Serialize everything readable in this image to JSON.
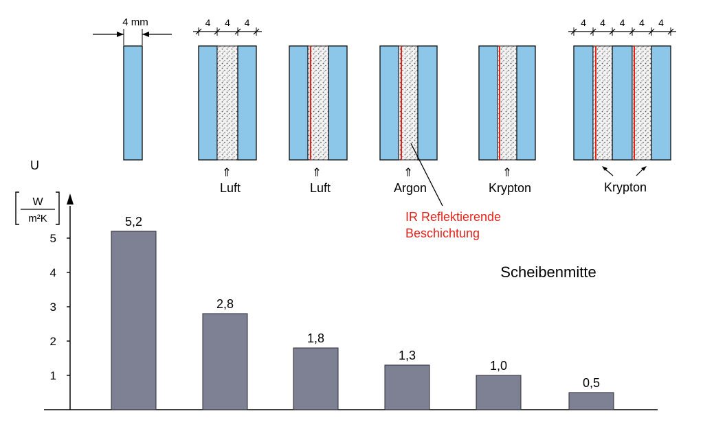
{
  "colors": {
    "glass": "#8cc6e8",
    "glass_edge": "#1a1a1a",
    "gas_fill": "#f2f2f2",
    "gas_dots": "#555555",
    "coating": "#e0241b",
    "bar": "#7e8193",
    "axis": "#000000",
    "callout_text": "#e0241b"
  },
  "diagram": {
    "single_pane_dimension": "4 mm",
    "pane_spacing_labels": [
      "4",
      "4",
      "4"
    ],
    "triple_spacing_labels": [
      "4",
      "4",
      "4",
      "4",
      "4"
    ],
    "gas_labels": [
      "Luft",
      "Luft",
      "Argon",
      "Krypton",
      "Krypton"
    ],
    "gas_label_arrow": "⇑",
    "coating_callout": [
      "IR Reflektierende",
      "Beschichtung"
    ]
  },
  "chart_data": {
    "type": "bar",
    "ylabel": "U",
    "yunit": {
      "numerator": "W",
      "denominator": "m²K"
    },
    "annotation": "Scheibenmitte",
    "values": [
      5.2,
      2.8,
      1.8,
      1.3,
      1.0,
      0.5
    ],
    "value_labels": [
      "5,2",
      "2,8",
      "1,8",
      "1,3",
      "1,0",
      "0,5"
    ],
    "yticks": [
      1,
      2,
      3,
      4,
      5
    ],
    "ylim": [
      0,
      6
    ],
    "grid": false
  }
}
